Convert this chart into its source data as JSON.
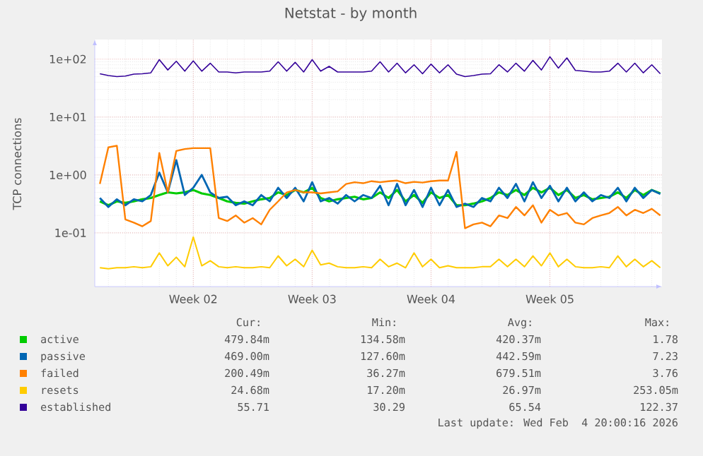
{
  "chart_data": {
    "type": "line",
    "title": "Netstat - by month",
    "ylabel": "TCP connections",
    "log": "y",
    "grid": true,
    "legend": "bottom",
    "marker": "none",
    "line_style": "solid",
    "ylim": [
      0.0118,
      218
    ],
    "yticks": [
      {
        "value": 0.1,
        "label": "1e-01"
      },
      {
        "value": 1,
        "label": "1e+00"
      },
      {
        "value": 10,
        "label": "1e+01"
      },
      {
        "value": 100,
        "label": "1e+02"
      }
    ],
    "categories": [
      null,
      null,
      null,
      null,
      null,
      null,
      null,
      null,
      null,
      null,
      null,
      "Week 02",
      null,
      null,
      null,
      null,
      null,
      null,
      null,
      null,
      null,
      null,
      null,
      null,
      null,
      "Week 03",
      null,
      null,
      null,
      null,
      null,
      null,
      null,
      null,
      null,
      null,
      null,
      null,
      null,
      "Week 04",
      null,
      null,
      null,
      null,
      null,
      null,
      null,
      null,
      null,
      null,
      null,
      null,
      null,
      "Week 05",
      null,
      null,
      null,
      null,
      null,
      null,
      null,
      null,
      null,
      null,
      null,
      null,
      null
    ],
    "series": [
      {
        "name": "active",
        "color": "#00cc00",
        "values": [
          0.35,
          0.3,
          0.35,
          0.33,
          0.35,
          0.38,
          0.4,
          0.45,
          0.5,
          0.48,
          0.5,
          0.55,
          0.48,
          0.45,
          0.4,
          0.35,
          0.33,
          0.32,
          0.35,
          0.38,
          0.4,
          0.5,
          0.45,
          0.55,
          0.5,
          0.6,
          0.4,
          0.35,
          0.38,
          0.4,
          0.42,
          0.38,
          0.4,
          0.5,
          0.4,
          0.55,
          0.35,
          0.45,
          0.33,
          0.5,
          0.4,
          0.45,
          0.3,
          0.3,
          0.32,
          0.35,
          0.4,
          0.5,
          0.45,
          0.55,
          0.45,
          0.6,
          0.5,
          0.6,
          0.45,
          0.55,
          0.4,
          0.45,
          0.38,
          0.4,
          0.42,
          0.5,
          0.4,
          0.55,
          0.45,
          0.55,
          0.48
        ]
      },
      {
        "name": "passive",
        "color": "#0066b3",
        "values": [
          0.4,
          0.28,
          0.38,
          0.3,
          0.38,
          0.35,
          0.45,
          1.1,
          0.5,
          1.8,
          0.45,
          0.6,
          1.0,
          0.5,
          0.4,
          0.42,
          0.3,
          0.35,
          0.3,
          0.45,
          0.35,
          0.6,
          0.4,
          0.6,
          0.35,
          0.75,
          0.35,
          0.4,
          0.32,
          0.45,
          0.35,
          0.45,
          0.4,
          0.65,
          0.3,
          0.7,
          0.3,
          0.55,
          0.28,
          0.6,
          0.3,
          0.55,
          0.28,
          0.32,
          0.28,
          0.4,
          0.35,
          0.6,
          0.4,
          0.7,
          0.35,
          0.75,
          0.4,
          0.65,
          0.35,
          0.6,
          0.35,
          0.5,
          0.35,
          0.45,
          0.4,
          0.6,
          0.35,
          0.6,
          0.4,
          0.55,
          0.47
        ]
      },
      {
        "name": "failed",
        "color": "#ff8000",
        "values": [
          0.7,
          3.0,
          3.2,
          0.17,
          0.15,
          0.13,
          0.16,
          2.4,
          0.5,
          2.6,
          2.8,
          2.9,
          2.9,
          2.9,
          0.18,
          0.16,
          0.2,
          0.15,
          0.18,
          0.14,
          0.25,
          0.35,
          0.5,
          0.55,
          0.5,
          0.5,
          0.48,
          0.5,
          0.52,
          0.7,
          0.75,
          0.72,
          0.78,
          0.75,
          0.78,
          0.8,
          0.72,
          0.76,
          0.74,
          0.78,
          0.8,
          0.8,
          2.5,
          0.12,
          0.14,
          0.15,
          0.13,
          0.2,
          0.18,
          0.28,
          0.2,
          0.3,
          0.15,
          0.25,
          0.2,
          0.22,
          0.15,
          0.14,
          0.18,
          0.2,
          0.22,
          0.28,
          0.2,
          0.25,
          0.22,
          0.26,
          0.2
        ]
      },
      {
        "name": "resets",
        "color": "#ffcc00",
        "values": [
          0.025,
          0.024,
          0.025,
          0.025,
          0.026,
          0.025,
          0.026,
          0.045,
          0.027,
          0.038,
          0.026,
          0.085,
          0.027,
          0.033,
          0.026,
          0.025,
          0.026,
          0.025,
          0.025,
          0.026,
          0.025,
          0.04,
          0.027,
          0.035,
          0.026,
          0.05,
          0.028,
          0.03,
          0.026,
          0.025,
          0.025,
          0.026,
          0.025,
          0.035,
          0.026,
          0.03,
          0.025,
          0.045,
          0.026,
          0.035,
          0.025,
          0.027,
          0.025,
          0.025,
          0.025,
          0.026,
          0.026,
          0.035,
          0.026,
          0.035,
          0.026,
          0.04,
          0.027,
          0.045,
          0.026,
          0.035,
          0.026,
          0.025,
          0.025,
          0.026,
          0.025,
          0.04,
          0.026,
          0.035,
          0.026,
          0.033,
          0.025
        ]
      },
      {
        "name": "established",
        "color": "#330099",
        "values": [
          56,
          52,
          50,
          51,
          55,
          56,
          58,
          98,
          65,
          92,
          62,
          93,
          62,
          85,
          60,
          60,
          58,
          60,
          60,
          60,
          62,
          90,
          62,
          88,
          60,
          98,
          62,
          75,
          60,
          60,
          60,
          60,
          62,
          90,
          60,
          85,
          58,
          80,
          56,
          82,
          58,
          80,
          55,
          50,
          52,
          55,
          56,
          80,
          60,
          85,
          62,
          95,
          65,
          110,
          70,
          105,
          64,
          62,
          60,
          60,
          62,
          85,
          60,
          85,
          58,
          80,
          56
        ]
      }
    ],
    "annotations": [
      "Cur:",
      "Min:",
      "Avg:",
      "Max:",
      "479.84m",
      "134.58m",
      "420.37m",
      "1.78",
      "469.00m",
      "127.60m",
      "442.59m",
      "7.23",
      "200.49m",
      "36.27m",
      "679.51m",
      "3.76",
      "24.68m",
      "17.20m",
      "26.97m",
      "253.05m",
      "55.71",
      "30.29",
      "65.54",
      "122.37",
      "Last update: Wed Feb  4 20:00:16 2026"
    ]
  }
}
